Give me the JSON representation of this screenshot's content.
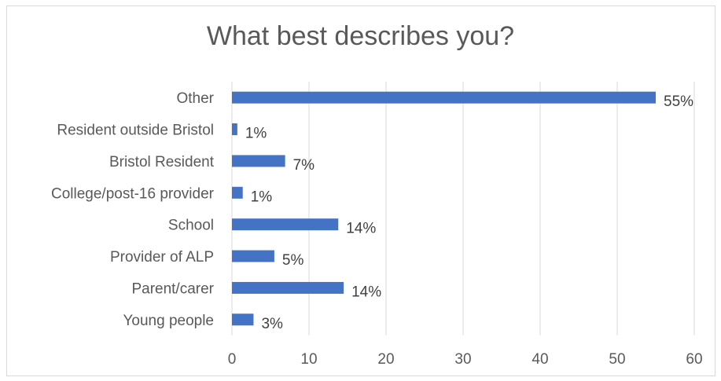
{
  "chart_data": {
    "type": "bar",
    "orientation": "horizontal",
    "title": "What best describes you?",
    "categories": [
      "Other",
      "Resident outside Bristol",
      "Bristol Resident",
      "College/post-16 provider",
      "School",
      "Provider of ALP",
      "Parent/carer",
      "Young people"
    ],
    "values": [
      55,
      0.7,
      6.9,
      1.4,
      13.8,
      5.5,
      14.5,
      2.8
    ],
    "data_labels": [
      "55%",
      "1%",
      "7%",
      "1%",
      "14%",
      "5%",
      "14%",
      "3%"
    ],
    "xlim": [
      0,
      60
    ],
    "x_ticks": [
      0,
      10,
      20,
      30,
      40,
      50,
      60
    ],
    "x_tick_labels": [
      "0",
      "10",
      "20",
      "30",
      "40",
      "50",
      "60"
    ],
    "grid": true,
    "bar_color": "#4472c4",
    "grid_color": "#d9d9d9",
    "legend": "none"
  }
}
